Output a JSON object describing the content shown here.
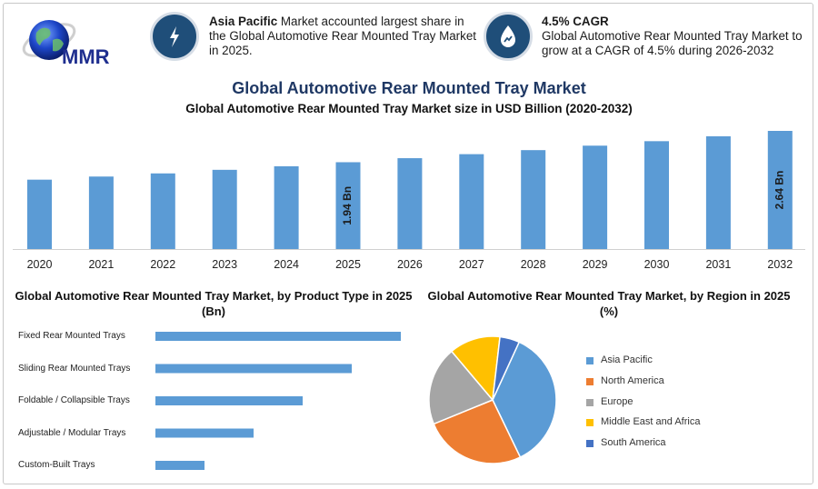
{
  "logo": {
    "text": "MMR"
  },
  "callouts": [
    {
      "bold": "Asia Pacific",
      "text": " Market accounted largest share in the Global Automotive Rear Mounted Tray Market in 2025.",
      "icon": "lightning-icon"
    },
    {
      "bold": "4.5% CAGR",
      "text": "Global Automotive Rear Mounted Tray Market to grow at a CAGR of 4.5% during 2026-2032",
      "icon": "growth-drop-icon"
    }
  ],
  "titles": {
    "main": "Global Automotive Rear Mounted Tray Market",
    "sub": "Global Automotive Rear Mounted Tray Market size in USD Billion (2020-2032)",
    "product": "Global Automotive Rear Mounted Tray Market, by Product Type in 2025 (Bn)",
    "region": "Global Automotive Rear Mounted Tray Market, by Region in 2025 (%)"
  },
  "colors": {
    "bar": "#5b9bd5",
    "title": "#1f3864",
    "icon_circle": "#1f4e79"
  },
  "chart_data": [
    {
      "type": "bar",
      "categories": [
        "2020",
        "2021",
        "2022",
        "2023",
        "2024",
        "2025",
        "2026",
        "2027",
        "2028",
        "2029",
        "2030",
        "2031",
        "2032"
      ],
      "values": [
        1.55,
        1.62,
        1.69,
        1.77,
        1.85,
        1.94,
        2.03,
        2.12,
        2.21,
        2.31,
        2.41,
        2.52,
        2.64
      ],
      "data_labels": [
        {
          "index": 5,
          "text": "1.94 Bn"
        },
        {
          "index": 12,
          "text": "2.64 Bn"
        }
      ],
      "title": "Global Automotive Rear Mounted Tray Market size in USD Billion (2020-2032)",
      "ylim": [
        0,
        2.64
      ],
      "grid": false
    },
    {
      "type": "bar",
      "orientation": "horizontal",
      "categories": [
        "Fixed Rear Mounted Trays",
        "Sliding Rear Mounted Trays",
        "Foldable / Collapsible Trays",
        "Adjustable / Modular Trays",
        "Custom-Built Trays"
      ],
      "values": [
        1.0,
        0.8,
        0.6,
        0.4,
        0.2
      ],
      "title": "Global Automotive Rear Mounted Tray Market, by Product Type in 2025 (Bn)",
      "grid": false
    },
    {
      "type": "pie",
      "categories": [
        "Asia Pacific",
        "North America",
        "Europe",
        "Middle East and Africa",
        "South America"
      ],
      "values": [
        36,
        26,
        20,
        13,
        5
      ],
      "colors": [
        "#5b9bd5",
        "#ed7d31",
        "#a5a5a5",
        "#ffc000",
        "#4472c4"
      ],
      "legend": "right",
      "title": "Global Automotive Rear Mounted Tray Market, by Region in 2025 (%)"
    }
  ]
}
